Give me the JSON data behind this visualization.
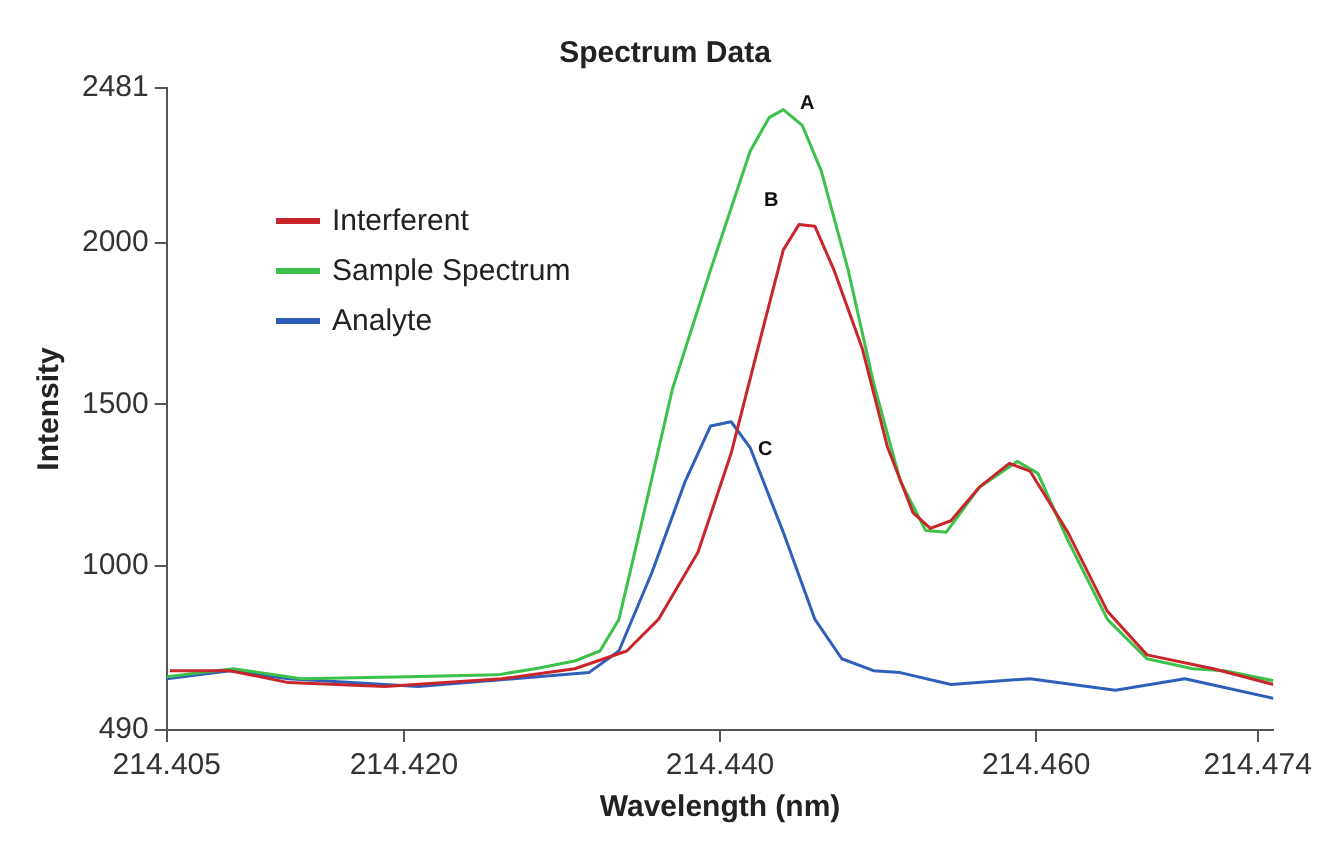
{
  "chart_data": {
    "type": "line",
    "title": "Spectrum Data",
    "xlabel": "Wavelength (nm)",
    "ylabel": "Intensity",
    "xlim": [
      214.405,
      214.475
    ],
    "xticks": [
      214.405,
      {
        "value": 214.42,
        "label": "214.420"
      },
      {
        "value": 214.44,
        "label": "214.440"
      },
      {
        "value": 214.46,
        "label": "214.460"
      },
      214.474
    ],
    "ylim": [
      490,
      2481
    ],
    "yticks": [
      490,
      1000,
      1500,
      2000,
      2481
    ],
    "grid": false,
    "legend": "top left",
    "marker": "none",
    "line_style": "solid",
    "annotations": [
      {
        "text": "A",
        "x": 214.444,
        "y": 2414
      },
      {
        "text": "B",
        "x": 214.445,
        "y": 2058
      },
      {
        "text": "C",
        "x": 214.4407,
        "y": 1446
      }
    ],
    "series": [
      {
        "name": "Interferent",
        "color": "#c8262a",
        "x": [
          214.4052,
          214.409,
          214.4127,
          214.4188,
          214.4262,
          214.4308,
          214.4341,
          214.4361,
          214.4386,
          214.4407,
          214.4428,
          214.444,
          214.445,
          214.446,
          214.4472,
          214.449,
          214.4506,
          214.4522,
          214.4533,
          214.4546,
          214.4564,
          214.4583,
          214.4596,
          214.462,
          214.4645,
          214.467,
          214.4712,
          214.475
        ],
        "values": [
          674,
          674,
          637,
          625,
          649,
          680,
          735,
          833,
          1041,
          1348,
          1752,
          1979,
          2058,
          2052,
          1917,
          1672,
          1366,
          1164,
          1115,
          1139,
          1243,
          1317,
          1293,
          1103,
          858,
          723,
          680,
          631
        ]
      },
      {
        "name": "Sample Spectrum",
        "color": "#3cc24a",
        "x": [
          214.405,
          214.4092,
          214.4135,
          214.4203,
          214.4259,
          214.4283,
          214.4308,
          214.4324,
          214.4336,
          214.4349,
          214.437,
          214.4394,
          214.4419,
          214.4431,
          214.444,
          214.4452,
          214.4464,
          214.4481,
          214.4497,
          214.4514,
          214.453,
          214.4543,
          214.4564,
          214.4588,
          214.4601,
          214.462,
          214.4645,
          214.467,
          214.4699,
          214.4719,
          214.475
        ],
        "values": [
          655,
          680,
          649,
          655,
          661,
          680,
          704,
          735,
          833,
          1103,
          1550,
          1917,
          2285,
          2389,
          2414,
          2365,
          2224,
          1917,
          1568,
          1262,
          1109,
          1103,
          1243,
          1323,
          1286,
          1078,
          833,
          711,
          680,
          674,
          643
        ]
      },
      {
        "name": "Analyte",
        "color": "#2f5fb8",
        "x": [
          214.405,
          214.409,
          214.4127,
          214.4209,
          214.4317,
          214.4336,
          214.4357,
          214.4378,
          214.4394,
          214.4407,
          214.4419,
          214.444,
          214.446,
          214.4477,
          214.4497,
          214.4514,
          214.4546,
          214.4596,
          214.465,
          214.4694,
          214.475
        ],
        "values": [
          649,
          674,
          649,
          625,
          668,
          735,
          980,
          1262,
          1433,
          1446,
          1366,
          1103,
          833,
          711,
          674,
          668,
          631,
          649,
          613,
          649,
          588
        ]
      }
    ]
  }
}
